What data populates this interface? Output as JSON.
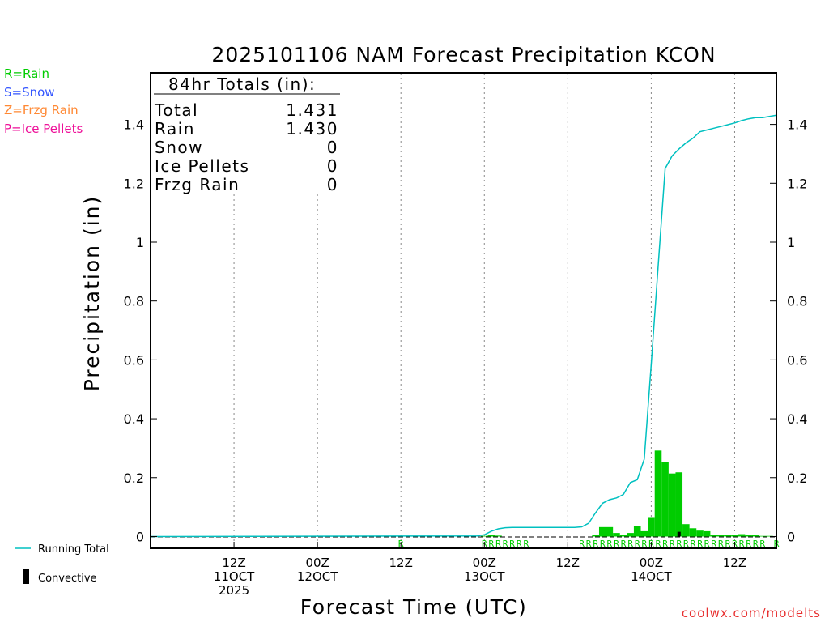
{
  "colors": {
    "rain": "#00cc00",
    "snow": "#3355ff",
    "frzg_rain": "#ff8833",
    "ice_pellets": "#ee1199",
    "running_total": "#00c0c0",
    "convective": "#000000",
    "credit": "#e83030",
    "axis": "#000000",
    "grid": "#888888"
  },
  "legend_left": {
    "rain": "R=Rain",
    "snow": "S=Snow",
    "frzg_rain": "Z=Frzg Rain",
    "ice_pellets": "P=Ice Pellets",
    "running_total": "Running Total",
    "convective": "Convective"
  },
  "totals_box": {
    "heading": "84hr Totals (in):",
    "rows": [
      {
        "label": "Total",
        "value": "1.431"
      },
      {
        "label": "Rain",
        "value": "1.430"
      },
      {
        "label": "Snow",
        "value": "0"
      },
      {
        "label": "Ice Pellets",
        "value": "0"
      },
      {
        "label": "Frzg Rain",
        "value": "0"
      }
    ]
  },
  "credit": "coolwx.com/modelts",
  "chart_data": {
    "type": "bar",
    "title": "2025101106 NAM Forecast Precipitation KCON",
    "xlabel": "Forecast Time (UTC)",
    "ylabel": "Precipitation (in)",
    "x_unit": "forecast hour",
    "xlim": [
      -6,
      84
    ],
    "ylim": [
      -0.04,
      1.575
    ],
    "y_ticks": [
      0,
      0.2,
      0.4,
      0.6,
      0.8,
      1,
      1.2,
      1.4
    ],
    "y_tick_labels": [
      "0",
      "0.2",
      "0.4",
      "0.6",
      "0.8",
      "1",
      "1.2",
      "1.4"
    ],
    "grid_x": true,
    "x_ticks": [
      {
        "hour": 6,
        "lines": [
          "12Z",
          "11OCT",
          "2025"
        ]
      },
      {
        "hour": 18,
        "lines": [
          "00Z",
          "12OCT"
        ]
      },
      {
        "hour": 30,
        "lines": [
          "12Z"
        ]
      },
      {
        "hour": 42,
        "lines": [
          "00Z",
          "13OCT"
        ]
      },
      {
        "hour": 54,
        "lines": [
          "12Z"
        ]
      },
      {
        "hour": 66,
        "lines": [
          "00Z",
          "14OCT"
        ]
      },
      {
        "hour": 78,
        "lines": [
          "12Z"
        ]
      }
    ],
    "series": [
      {
        "name": "Rain",
        "type": "bar",
        "color_key": "rain",
        "x": [
          42,
          43,
          44,
          58,
          59,
          60,
          61,
          62,
          63,
          64,
          65,
          66,
          67,
          68,
          69,
          70,
          71,
          72,
          73,
          74,
          75,
          76,
          77,
          78,
          79,
          80,
          81,
          82,
          83
        ],
        "values": [
          0.002,
          0.004,
          0.003,
          0.006,
          0.032,
          0.032,
          0.012,
          0.006,
          0.012,
          0.036,
          0.018,
          0.066,
          0.292,
          0.254,
          0.214,
          0.218,
          0.042,
          0.028,
          0.02,
          0.018,
          0.006,
          0.004,
          0.006,
          0.004,
          0.008,
          0.004,
          0.004,
          0.002,
          0.002
        ]
      },
      {
        "name": "Convective",
        "type": "bar",
        "color_key": "convective",
        "x": [
          70
        ],
        "values": [
          0.016
        ]
      },
      {
        "name": "Running Total",
        "type": "line",
        "color_key": "running_total",
        "x": [
          -6,
          41,
          42,
          43,
          44,
          45,
          46,
          55,
          56,
          57,
          58,
          59,
          60,
          61,
          62,
          63,
          64,
          65,
          66,
          67,
          68,
          69,
          70,
          71,
          72,
          73,
          74,
          75,
          76,
          77,
          78,
          79,
          80,
          81,
          82,
          83,
          84
        ],
        "values": [
          0.0,
          0.002,
          0.006,
          0.018,
          0.026,
          0.03,
          0.031,
          0.031,
          0.033,
          0.045,
          0.081,
          0.113,
          0.125,
          0.131,
          0.143,
          0.183,
          0.193,
          0.263,
          0.585,
          0.92,
          1.25,
          1.293,
          1.317,
          1.337,
          1.353,
          1.375,
          1.381,
          1.387,
          1.393,
          1.399,
          1.405,
          1.413,
          1.419,
          1.423,
          1.423,
          1.427,
          1.431
        ]
      }
    ],
    "precip_type_codes": [
      {
        "hour": 30,
        "code": "R"
      },
      {
        "hour": 42,
        "code": "R"
      },
      {
        "hour": 43,
        "code": "R"
      },
      {
        "hour": 44,
        "code": "R"
      },
      {
        "hour": 45,
        "code": "R"
      },
      {
        "hour": 46,
        "code": "R"
      },
      {
        "hour": 47,
        "code": "R"
      },
      {
        "hour": 48,
        "code": "R"
      },
      {
        "hour": 56,
        "code": "R"
      },
      {
        "hour": 57,
        "code": "R"
      },
      {
        "hour": 58,
        "code": "R"
      },
      {
        "hour": 59,
        "code": "R"
      },
      {
        "hour": 60,
        "code": "R"
      },
      {
        "hour": 61,
        "code": "R"
      },
      {
        "hour": 62,
        "code": "R"
      },
      {
        "hour": 63,
        "code": "R"
      },
      {
        "hour": 64,
        "code": "R"
      },
      {
        "hour": 65,
        "code": "R"
      },
      {
        "hour": 66,
        "code": "R"
      },
      {
        "hour": 67,
        "code": "R"
      },
      {
        "hour": 68,
        "code": "R"
      },
      {
        "hour": 69,
        "code": "R"
      },
      {
        "hour": 70,
        "code": "R"
      },
      {
        "hour": 71,
        "code": "R"
      },
      {
        "hour": 72,
        "code": "R"
      },
      {
        "hour": 73,
        "code": "R"
      },
      {
        "hour": 74,
        "code": "R"
      },
      {
        "hour": 75,
        "code": "R"
      },
      {
        "hour": 76,
        "code": "R"
      },
      {
        "hour": 77,
        "code": "R"
      },
      {
        "hour": 78,
        "code": "R"
      },
      {
        "hour": 79,
        "code": "R"
      },
      {
        "hour": 80,
        "code": "R"
      },
      {
        "hour": 81,
        "code": "R"
      },
      {
        "hour": 82,
        "code": "R"
      },
      {
        "hour": 84,
        "code": "R"
      }
    ]
  }
}
